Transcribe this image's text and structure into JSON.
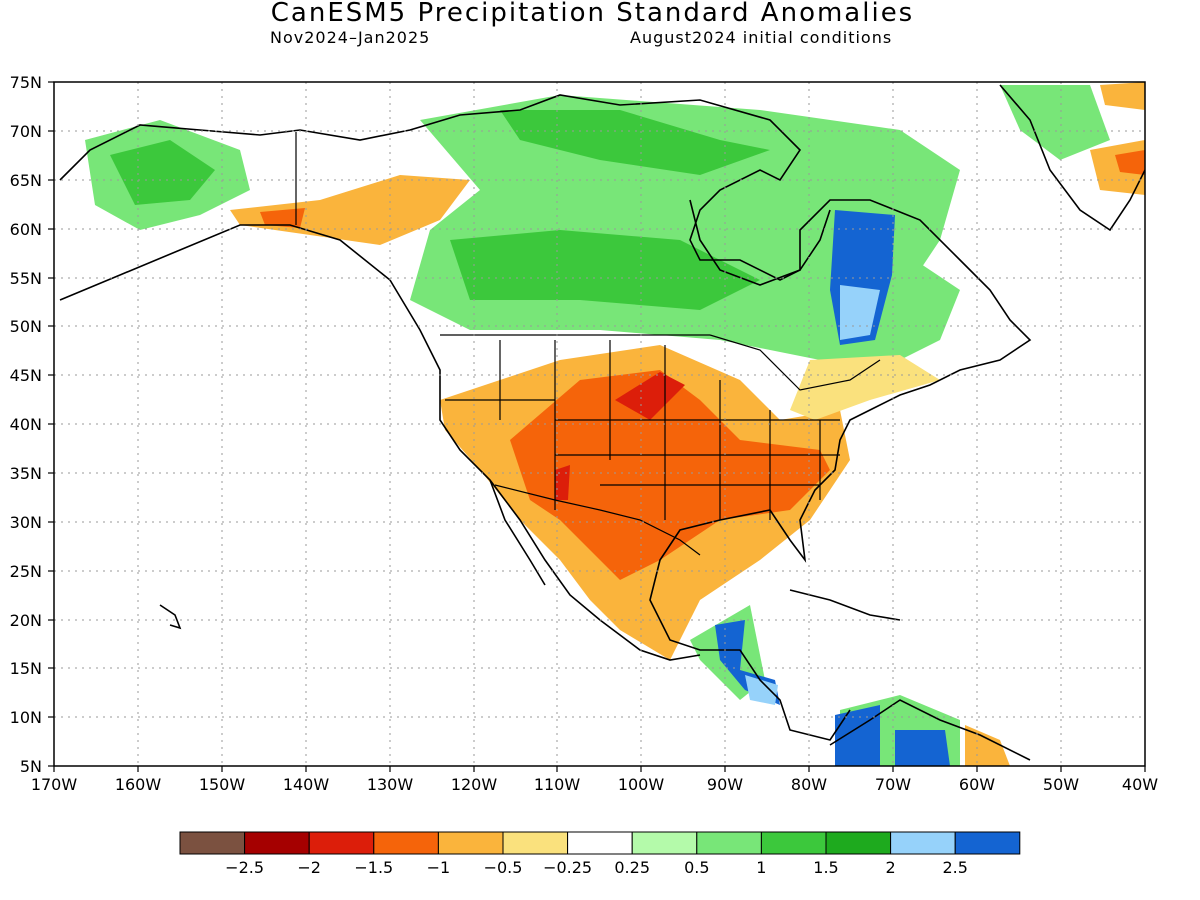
{
  "title": "CanESM5 Precipitation Standard Anomalies",
  "subtitle_left": "Nov2024–Jan2025",
  "subtitle_right": "August2024 initial conditions",
  "axes": {
    "lat_labels": [
      "75N",
      "70N",
      "65N",
      "60N",
      "55N",
      "50N",
      "45N",
      "40N",
      "35N",
      "30N",
      "25N",
      "20N",
      "15N",
      "10N",
      "5N"
    ],
    "lon_labels": [
      "170W",
      "160W",
      "150W",
      "140W",
      "130W",
      "120W",
      "110W",
      "100W",
      "90W",
      "80W",
      "70W",
      "60W",
      "50W",
      "40W"
    ]
  },
  "legend": {
    "colors": [
      "#7b5140",
      "#a50000",
      "#dc1e0a",
      "#f5640a",
      "#fab43c",
      "#fae17d",
      "#ffffff",
      "#b4faaa",
      "#78e678",
      "#3cc83c",
      "#1eaa1e",
      "#96d2fa",
      "#1464d2"
    ],
    "labels": [
      "−2.5",
      "−2",
      "−1.5",
      "−1",
      "−0.5",
      "−0.25",
      "0.25",
      "0.5",
      "1",
      "1.5",
      "2",
      "2.5"
    ]
  },
  "colors": {
    "dry_strong": "#f5640a",
    "dry_moderate": "#fab43c",
    "dry_weak": "#fae17d",
    "wet_weak": "#b4faaa",
    "wet_moderate": "#78e678",
    "wet_strong": "#3cc83c",
    "wet_very_strong": "#1eaa1e",
    "extreme_wet_light": "#96d2fa",
    "extreme_wet": "#1464d2",
    "extreme_dry": "#dc1e0a"
  }
}
